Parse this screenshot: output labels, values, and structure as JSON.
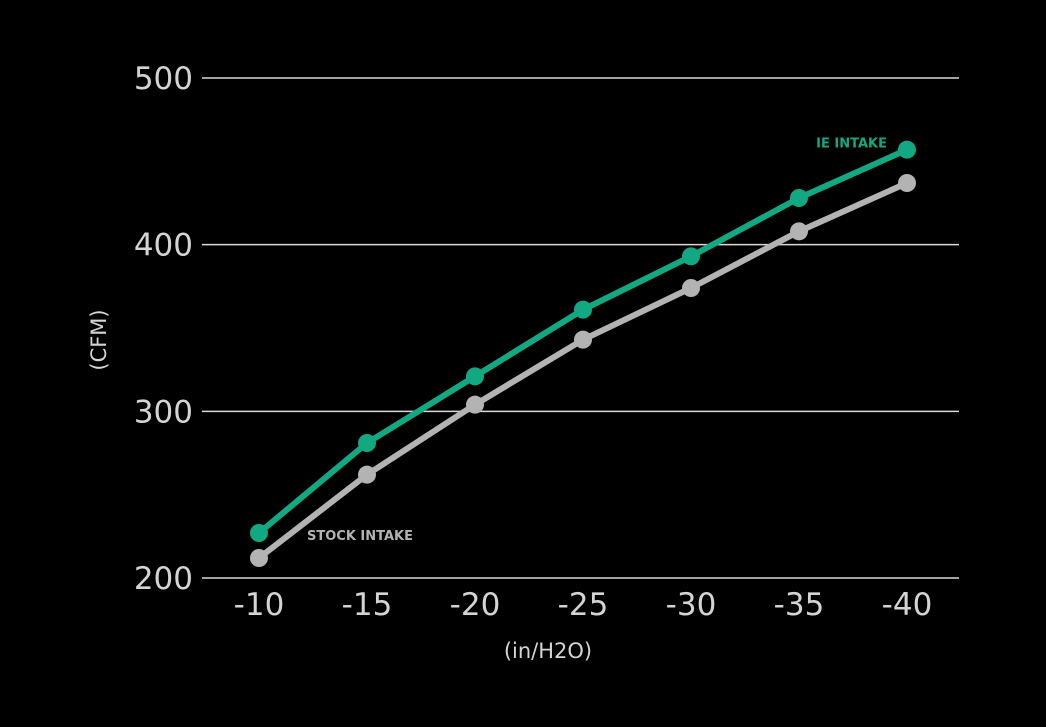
{
  "chart_data": {
    "type": "line",
    "title": "",
    "xlabel": "(in/H2O)",
    "ylabel": "(CFM)",
    "x": [
      "-10",
      "-15",
      "-20",
      "-25",
      "-30",
      "-35",
      "-40"
    ],
    "yticks": [
      "200",
      "300",
      "400",
      "500"
    ],
    "ylim": [
      200,
      500
    ],
    "grid": "horizontal",
    "series": [
      {
        "name": "STOCK INTAKE",
        "color": "#b3b3b3",
        "values": [
          212,
          262,
          304,
          343,
          374,
          408,
          437
        ]
      },
      {
        "name": "IE INTAKE",
        "color": "#12a982",
        "values": [
          227,
          281,
          321,
          361,
          393,
          428,
          457
        ]
      }
    ]
  }
}
